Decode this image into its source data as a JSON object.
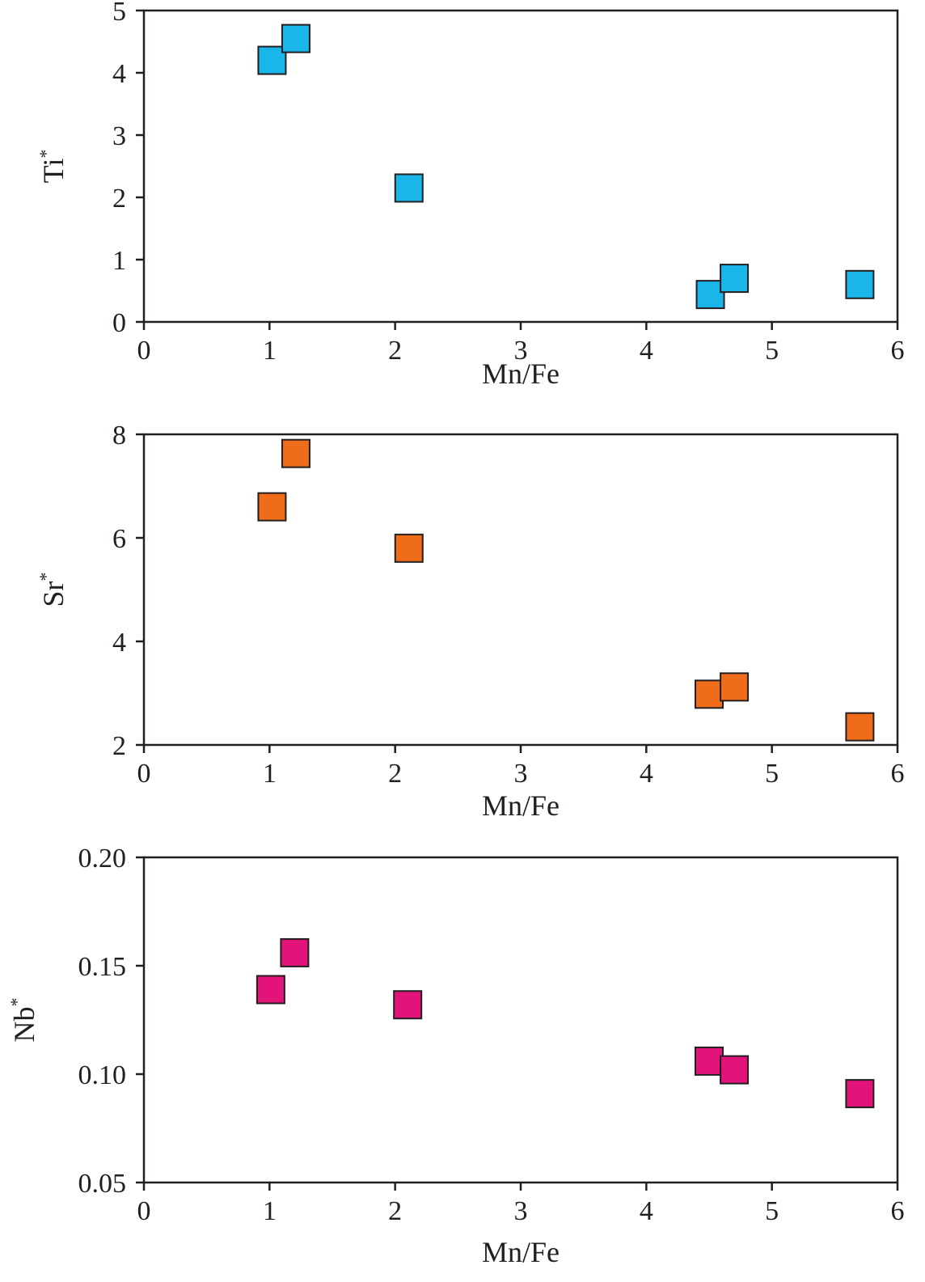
{
  "chart_data": [
    {
      "type": "scatter",
      "xlabel": "Mn/Fe",
      "ylabel": "Ti",
      "ylabel_sup": "*",
      "xlim": [
        0,
        6
      ],
      "ylim": [
        0,
        5
      ],
      "xticks": [
        "0",
        "1",
        "2",
        "3",
        "4",
        "5",
        "6"
      ],
      "yticks": [
        "0",
        "1",
        "2",
        "3",
        "4",
        "5"
      ],
      "marker_color": "#1ab6ea",
      "series": [
        {
          "x": [
            1.02,
            1.21,
            2.11,
            4.51,
            4.7,
            5.7
          ],
          "y": [
            4.2,
            4.55,
            2.15,
            0.44,
            0.7,
            0.6
          ]
        }
      ]
    },
    {
      "type": "scatter",
      "xlabel": "Mn/Fe",
      "ylabel": "Sr",
      "ylabel_sup": "*",
      "xlim": [
        0,
        6
      ],
      "ylim": [
        2,
        8
      ],
      "xticks": [
        "0",
        "1",
        "2",
        "3",
        "4",
        "5",
        "6"
      ],
      "yticks": [
        "2",
        "4",
        "6",
        "8"
      ],
      "marker_color": "#ee6c1a",
      "series": [
        {
          "x": [
            1.02,
            1.21,
            2.11,
            4.5,
            4.7,
            5.7
          ],
          "y": [
            6.6,
            7.63,
            5.8,
            2.98,
            3.12,
            2.35
          ]
        }
      ]
    },
    {
      "type": "scatter",
      "xlabel": "Mn/Fe",
      "ylabel": "Nb",
      "ylabel_sup": "*",
      "xlim": [
        0,
        6
      ],
      "ylim": [
        0.05,
        0.2
      ],
      "xticks": [
        "0",
        "1",
        "2",
        "3",
        "4",
        "5",
        "6"
      ],
      "yticks": [
        "0.05",
        "0.10",
        "0.15",
        "0.20"
      ],
      "marker_color": "#e2147a",
      "series": [
        {
          "x": [
            1.01,
            1.2,
            2.1,
            4.5,
            4.7,
            5.7
          ],
          "y": [
            0.139,
            0.156,
            0.132,
            0.106,
            0.102,
            0.091
          ]
        }
      ]
    }
  ]
}
